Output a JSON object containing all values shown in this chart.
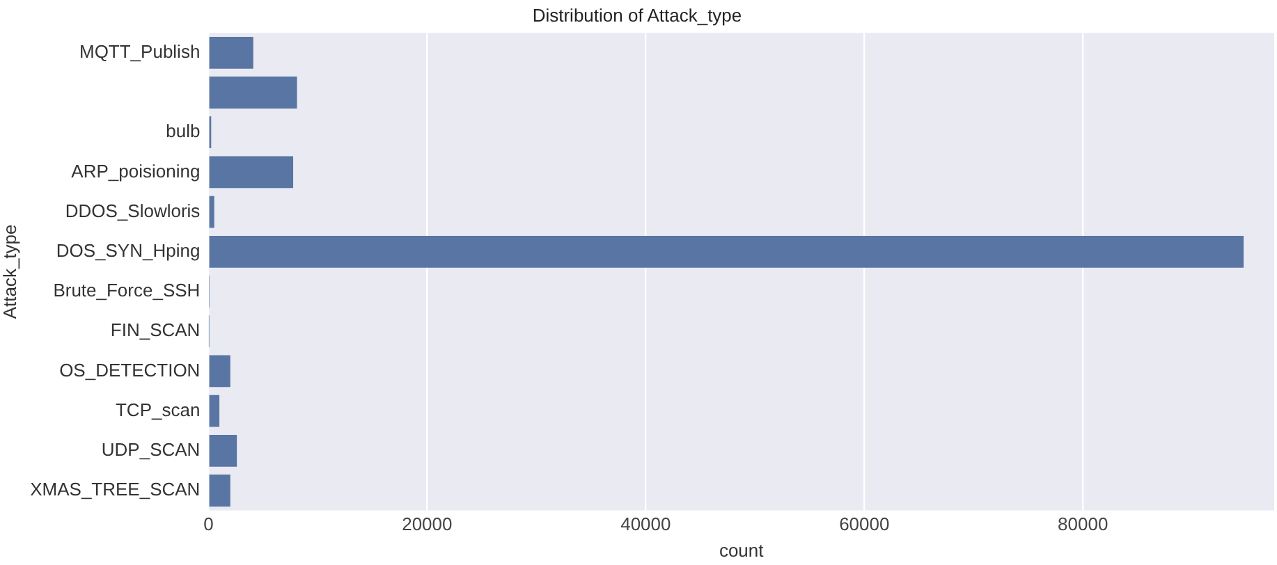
{
  "chart_data": {
    "type": "bar",
    "orientation": "horizontal",
    "title": "Distribution of Attack_type",
    "xlabel": "count",
    "ylabel": "Attack_type",
    "categories": [
      "MQTT_Publish",
      null,
      "bulb",
      "ARP_poisioning",
      "DDOS_Slowloris",
      "DOS_SYN_Hping",
      "Brute_Force_SSH",
      "FIN_SCAN",
      "OS_DETECTION",
      "TCP_scan",
      "UDP_SCAN",
      "XMAS_TREE_SCAN"
    ],
    "values": [
      4100,
      8100,
      250,
      7750,
      530,
      94700,
      40,
      30,
      2000,
      1000,
      2600,
      2000
    ],
    "color": "#5875a4",
    "xlim": [
      0,
      97500
    ],
    "xticks": [
      0,
      20000,
      40000,
      60000,
      80000
    ],
    "grid": "x",
    "legend": false
  }
}
